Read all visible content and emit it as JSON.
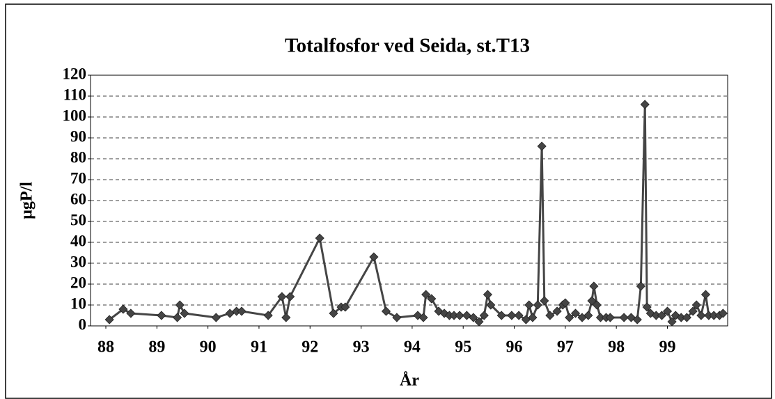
{
  "chart_data": {
    "type": "line",
    "title": "Totalfosfor ved Seida, st.T13",
    "xlabel": "År",
    "ylabel": "µgP/l",
    "x": [
      88.07,
      88.34,
      88.49,
      89.09,
      89.4,
      89.45,
      89.54,
      90.16,
      90.43,
      90.56,
      90.66,
      91.18,
      91.45,
      91.53,
      91.61,
      92.19,
      92.46,
      92.61,
      92.69,
      93.25,
      93.49,
      93.7,
      94.11,
      94.22,
      94.27,
      94.38,
      94.52,
      94.63,
      94.73,
      94.82,
      94.93,
      95.07,
      95.2,
      95.31,
      95.41,
      95.48,
      95.54,
      95.75,
      95.95,
      96.09,
      96.23,
      96.29,
      96.36,
      96.46,
      96.54,
      96.59,
      96.7,
      96.84,
      96.95,
      97.0,
      97.08,
      97.2,
      97.33,
      97.45,
      97.52,
      97.56,
      97.62,
      97.69,
      97.8,
      97.88,
      98.15,
      98.29,
      98.41,
      98.48,
      98.56,
      98.6,
      98.67,
      98.78,
      98.89,
      99.0,
      99.09,
      99.16,
      99.27,
      99.38,
      99.5,
      99.57,
      99.66,
      99.75,
      99.81,
      99.91,
      100.02,
      100.09
    ],
    "values": [
      3,
      8,
      6,
      5,
      4,
      10,
      6,
      4,
      6,
      7,
      7,
      5,
      14,
      4,
      14,
      42,
      6,
      9,
      9,
      33,
      7,
      4,
      5,
      4,
      15,
      13,
      7,
      6,
      5,
      5,
      5,
      5,
      4,
      2,
      5,
      15,
      10,
      5,
      5,
      5,
      3,
      10,
      4,
      10,
      86,
      12,
      5,
      7,
      10,
      11,
      4,
      6,
      4,
      5,
      12,
      19,
      10,
      4,
      4,
      4,
      4,
      4,
      3,
      19,
      106,
      9,
      6,
      5,
      5,
      7,
      2,
      5,
      4,
      4,
      7,
      10,
      5,
      15,
      5,
      5,
      5,
      6
    ],
    "color": "#454545",
    "xlim": [
      87.7,
      100.18
    ],
    "xticks": [
      88,
      89,
      90,
      91,
      92,
      93,
      94,
      95,
      96,
      97,
      98,
      99
    ],
    "ylim": [
      0,
      120
    ],
    "yticks": [
      0,
      10,
      20,
      30,
      40,
      50,
      60,
      70,
      80,
      90,
      100,
      110,
      120
    ],
    "grid": true
  }
}
